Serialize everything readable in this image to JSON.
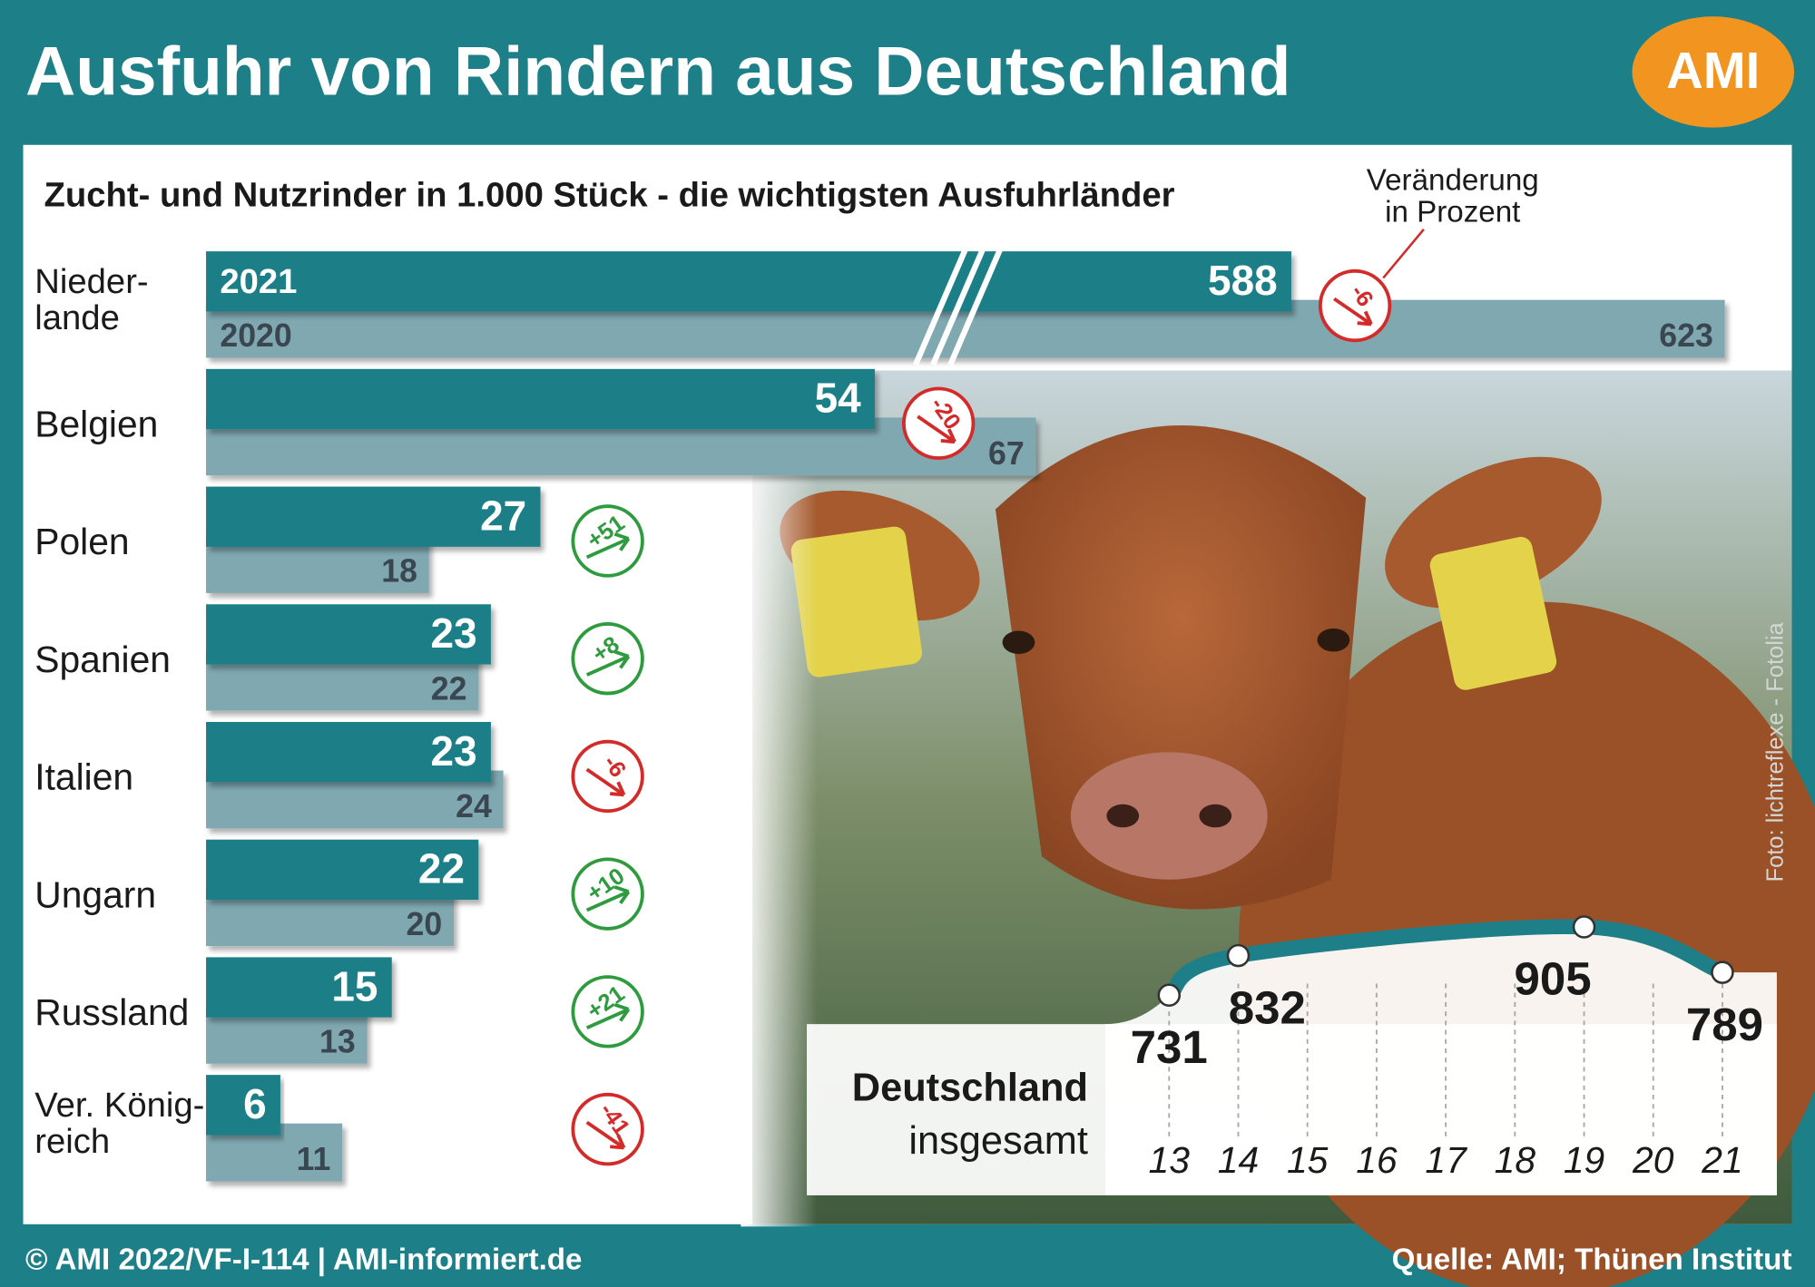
{
  "header": {
    "title": "Ausfuhr von Rindern aus Deutschland",
    "logo": "AMI"
  },
  "chart_data": [
    {
      "type": "bar",
      "orientation": "horizontal",
      "axis_break": true,
      "subtitle": "Zucht- und Nutzrinder in 1.000 Stück - die wichtigsten Ausfuhrländer",
      "categories": [
        "Nieder-\nlande",
        "Belgien",
        "Polen",
        "Spanien",
        "Italien",
        "Ungarn",
        "Russland",
        "Ver. König-\nreich"
      ],
      "series": [
        {
          "name": "2021",
          "color": "#1f7f88",
          "values": [
            588,
            54,
            27,
            23,
            23,
            22,
            15,
            6
          ]
        },
        {
          "name": "2020",
          "color": "#7fa8b1",
          "values": [
            623,
            67,
            18,
            22,
            24,
            20,
            13,
            11
          ]
        }
      ],
      "change": {
        "title": "Veränderung\nin Prozent",
        "values": [
          -6,
          -20,
          51,
          8,
          -6,
          10,
          21,
          -41
        ],
        "value_labels": [
          "-6",
          "-20",
          "+51",
          "+8",
          "-6",
          "+10",
          "+21",
          "-41"
        ],
        "colors": {
          "positive": "#2e9b3e",
          "negative": "#d42a2a"
        }
      }
    },
    {
      "type": "line",
      "title": "Deutschland",
      "subtitle": "insgesamt",
      "xticks": [
        13,
        14,
        15,
        16,
        17,
        18,
        19,
        20,
        21
      ],
      "series": [
        {
          "color": "#1f7f88",
          "x": [
            13,
            14,
            19,
            21
          ],
          "values": [
            731,
            832,
            905,
            789
          ]
        }
      ]
    }
  ],
  "footer": {
    "left": "© AMI 2022/VF-I-114 | AMI-informiert.de",
    "right": "Quelle: AMI; Thünen Institut"
  },
  "photo_credit": "Foto: lichtreflexe - Fotolia"
}
